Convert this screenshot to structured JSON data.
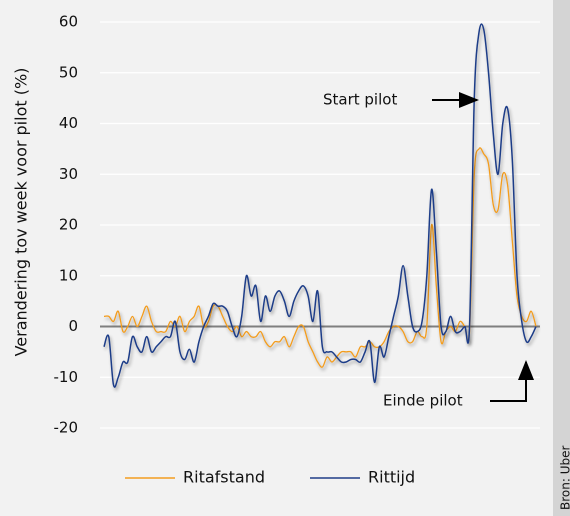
{
  "chart_data": {
    "type": "line",
    "ylabel": "Verandering tov week voor pilot (%)",
    "ylim": [
      -20,
      60
    ],
    "yticks": [
      -20,
      -10,
      0,
      10,
      20,
      30,
      40,
      50,
      60
    ],
    "grid": true,
    "series": [
      {
        "name": "Ritafstand",
        "color": "#f39c1f",
        "values": [
          2,
          2,
          1,
          3,
          -1,
          0,
          2,
          0,
          2,
          4,
          1,
          -1,
          -1,
          -1,
          1,
          0,
          2,
          -1,
          1,
          2,
          4,
          0,
          1,
          4,
          4,
          2,
          0,
          -1,
          0,
          -2,
          -1,
          -2,
          -2,
          -1,
          -3,
          -4,
          -3,
          -3,
          -2,
          -4,
          -2,
          0,
          0,
          -3,
          -5,
          -7,
          -8,
          -6,
          -7,
          -6,
          -5,
          -5,
          -5,
          -6,
          -4,
          -4,
          -3,
          -4,
          -4,
          -3,
          -1,
          0,
          0,
          -1,
          -3,
          -3,
          -1,
          -2,
          0,
          20,
          8,
          -3,
          -1,
          0,
          -1,
          1,
          0,
          -1,
          30,
          35,
          34,
          32,
          24,
          23,
          30,
          28,
          17,
          6,
          2,
          1,
          3,
          0
        ]
      },
      {
        "name": "Rittijd",
        "color": "#1f3c88",
        "values": [
          -4,
          -2,
          -11.5,
          -10,
          -7,
          -7,
          -2,
          -4,
          -5,
          -2,
          -5,
          -4,
          -3,
          -2,
          -2,
          1,
          -5,
          -6.5,
          -4.5,
          -7,
          -3,
          0,
          2,
          4.5,
          4,
          4,
          3,
          0,
          -2,
          2,
          10,
          6,
          8,
          1,
          6,
          3,
          6,
          7,
          5,
          2,
          5,
          7,
          8,
          6,
          1,
          7,
          -4,
          -5,
          -5,
          -6,
          -7,
          -7,
          -6.5,
          -6.5,
          -7,
          -5,
          -3,
          -11,
          -4,
          -6,
          -2,
          2,
          6,
          12,
          6,
          0,
          -1,
          1,
          10,
          27,
          15,
          0,
          -1,
          2,
          -1,
          -1,
          0,
          0,
          45,
          58,
          58.5,
          50,
          38,
          30,
          40,
          43,
          33,
          10,
          1,
          -3,
          -2,
          0
        ]
      }
    ],
    "annotations": [
      "Start pilot",
      "Einde pilot"
    ],
    "source": "Bron: Uber"
  }
}
